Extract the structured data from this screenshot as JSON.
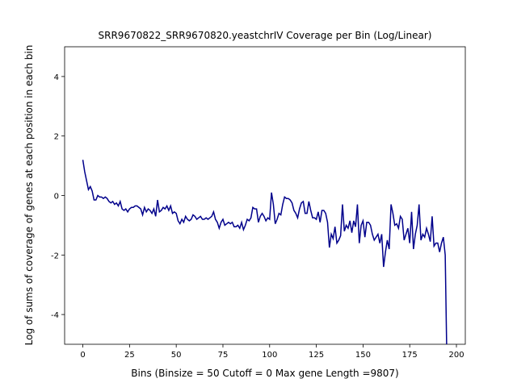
{
  "chart_data": {
    "type": "line",
    "title": "SRR9670822_SRR9670820.yeastchrIV Coverage per Bin (Log/Linear)",
    "x_label": "Bins  (Binsize = 50 Cutoff = 0 Max gene Length =9807)",
    "y_label": "Log of sums of coverage of genes at each position in each bin",
    "x": [
      0,
      1,
      2,
      3,
      4,
      5,
      6,
      7,
      8,
      9,
      10,
      11,
      12,
      13,
      14,
      15,
      16,
      17,
      18,
      19,
      20,
      21,
      22,
      23,
      24,
      25,
      26,
      27,
      28,
      29,
      30,
      31,
      32,
      33,
      34,
      35,
      36,
      37,
      38,
      39,
      40,
      41,
      42,
      43,
      44,
      45,
      46,
      47,
      48,
      49,
      50,
      51,
      52,
      53,
      54,
      55,
      56,
      57,
      58,
      59,
      60,
      61,
      62,
      63,
      64,
      65,
      66,
      67,
      68,
      69,
      70,
      71,
      72,
      73,
      74,
      75,
      76,
      77,
      78,
      79,
      80,
      81,
      82,
      83,
      84,
      85,
      86,
      87,
      88,
      89,
      90,
      91,
      92,
      93,
      94,
      95,
      96,
      97,
      98,
      99,
      100,
      101,
      102,
      103,
      104,
      105,
      106,
      107,
      108,
      109,
      110,
      111,
      112,
      113,
      114,
      115,
      116,
      117,
      118,
      119,
      120,
      121,
      122,
      123,
      124,
      125,
      126,
      127,
      128,
      129,
      130,
      131,
      132,
      133,
      134,
      135,
      136,
      137,
      138,
      139,
      140,
      141,
      142,
      143,
      144,
      145,
      146,
      147,
      148,
      149,
      150,
      151,
      152,
      153,
      154,
      155,
      156,
      157,
      158,
      159,
      160,
      161,
      162,
      163,
      164,
      165,
      166,
      167,
      168,
      169,
      170,
      171,
      172,
      173,
      174,
      175,
      176,
      177,
      178,
      179,
      180,
      181,
      182,
      183,
      184,
      185,
      186,
      187,
      188,
      189,
      190,
      191,
      192,
      193,
      194,
      195
    ],
    "series": [
      {
        "name": "coverage",
        "color": "#00008b",
        "values": [
          1.2,
          0.8,
          0.5,
          0.2,
          0.3,
          0.15,
          -0.15,
          -0.15,
          0.0,
          -0.05,
          -0.05,
          -0.1,
          -0.05,
          -0.1,
          -0.2,
          -0.25,
          -0.2,
          -0.3,
          -0.25,
          -0.35,
          -0.2,
          -0.45,
          -0.5,
          -0.45,
          -0.55,
          -0.45,
          -0.4,
          -0.4,
          -0.35,
          -0.35,
          -0.4,
          -0.45,
          -0.65,
          -0.4,
          -0.55,
          -0.45,
          -0.5,
          -0.6,
          -0.45,
          -0.7,
          -0.15,
          -0.55,
          -0.5,
          -0.4,
          -0.45,
          -0.35,
          -0.5,
          -0.35,
          -0.6,
          -0.55,
          -0.6,
          -0.85,
          -0.95,
          -0.8,
          -0.9,
          -0.7,
          -0.8,
          -0.85,
          -0.8,
          -0.65,
          -0.7,
          -0.8,
          -0.75,
          -0.7,
          -0.8,
          -0.8,
          -0.75,
          -0.8,
          -0.75,
          -0.7,
          -0.55,
          -0.8,
          -0.9,
          -1.1,
          -0.9,
          -0.8,
          -1.0,
          -0.95,
          -0.9,
          -0.95,
          -0.9,
          -1.05,
          -1.05,
          -1.0,
          -1.1,
          -0.9,
          -1.15,
          -1.0,
          -0.8,
          -0.85,
          -0.75,
          -0.4,
          -0.45,
          -0.45,
          -0.9,
          -0.7,
          -0.6,
          -0.7,
          -0.85,
          -0.75,
          -0.8,
          0.1,
          -0.3,
          -0.95,
          -0.8,
          -0.6,
          -0.65,
          -0.3,
          -0.05,
          -0.1,
          -0.1,
          -0.15,
          -0.25,
          -0.5,
          -0.6,
          -0.75,
          -0.45,
          -0.25,
          -0.2,
          -0.6,
          -0.6,
          -0.2,
          -0.5,
          -0.75,
          -0.75,
          -0.8,
          -0.55,
          -0.9,
          -0.5,
          -0.5,
          -0.6,
          -0.9,
          -1.75,
          -1.3,
          -1.45,
          -1.05,
          -1.6,
          -1.5,
          -1.35,
          -0.3,
          -1.2,
          -1.0,
          -1.1,
          -0.85,
          -1.25,
          -0.85,
          -1.05,
          -0.3,
          -1.6,
          -1.0,
          -0.85,
          -1.4,
          -0.9,
          -0.9,
          -1.0,
          -1.3,
          -1.5,
          -1.4,
          -1.3,
          -1.6,
          -1.3,
          -2.4,
          -1.9,
          -1.5,
          -1.8,
          -0.3,
          -0.6,
          -1.0,
          -0.95,
          -1.1,
          -0.7,
          -0.8,
          -1.5,
          -1.3,
          -1.1,
          -1.6,
          -0.55,
          -1.8,
          -1.3,
          -1.0,
          -0.3,
          -1.5,
          -1.3,
          -1.4,
          -1.1,
          -1.3,
          -1.55,
          -0.7,
          -1.7,
          -1.6,
          -1.6,
          -1.9,
          -1.6,
          -1.4,
          -2.0,
          -6.0
        ]
      }
    ],
    "xlim": [
      -9.75,
      204.75
    ],
    "ylim": [
      -5,
      5
    ],
    "xticks": [
      0,
      25,
      50,
      75,
      100,
      125,
      150,
      175,
      200
    ],
    "yticks": [
      -4,
      -2,
      0,
      2,
      4
    ]
  }
}
